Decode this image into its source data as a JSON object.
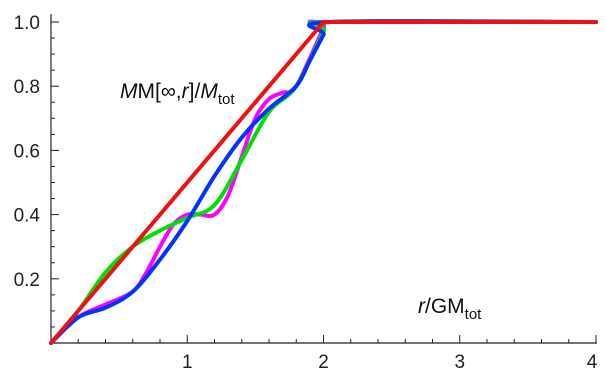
{
  "chart_data": {
    "type": "line",
    "title": "",
    "xlim": [
      0,
      4
    ],
    "ylim": [
      0,
      1
    ],
    "grid": false,
    "x_ticks": [
      1,
      2,
      3,
      4
    ],
    "y_ticks": [
      0.2,
      0.4,
      0.6,
      0.8,
      1.0
    ],
    "x_tick_labels": [
      "1",
      "2",
      "3",
      "4"
    ],
    "y_tick_labels": [
      "0.2",
      "0.4",
      "0.6",
      "0.8",
      "1.0"
    ],
    "annotations": {
      "y_label": {
        "main": "M[∞,",
        "r": "r",
        "close": "]/",
        "m2": "M",
        "sub": "tot"
      },
      "x_label": {
        "r": "r",
        "slash": "/GM",
        "sub": "tot"
      }
    },
    "series": [
      {
        "color": "#ff00ff",
        "x": [
          0,
          0.2,
          0.4,
          0.6,
          0.7,
          0.8,
          0.9,
          1.0,
          1.1,
          1.2,
          1.3,
          1.4,
          1.5,
          1.6,
          1.7,
          1.8,
          2.0,
          2.05,
          4.0
        ],
        "y": [
          0,
          0.08,
          0.12,
          0.16,
          0.22,
          0.3,
          0.37,
          0.4,
          0.4,
          0.4,
          0.46,
          0.58,
          0.7,
          0.76,
          0.78,
          0.8,
          0.98,
          1.0,
          1.0
        ]
      },
      {
        "color": "#00e000",
        "x": [
          0,
          0.2,
          0.4,
          0.6,
          0.8,
          1.0,
          1.2,
          1.4,
          1.6,
          1.8,
          2.0,
          2.05,
          4.0
        ],
        "y": [
          0,
          0.1,
          0.22,
          0.3,
          0.35,
          0.39,
          0.43,
          0.57,
          0.72,
          0.8,
          0.97,
          1.0,
          1.0
        ]
      },
      {
        "color": "#0033ff",
        "x": [
          0,
          0.2,
          0.4,
          0.6,
          0.8,
          1.0,
          1.2,
          1.4,
          1.6,
          1.8,
          1.9,
          2.0,
          2.05,
          4.0
        ],
        "y": [
          0,
          0.08,
          0.11,
          0.16,
          0.26,
          0.38,
          0.52,
          0.64,
          0.73,
          0.8,
          0.88,
          0.96,
          1.0,
          1.0
        ]
      },
      {
        "color": "#ee1111",
        "x": [
          0,
          2.0,
          4.0
        ],
        "y": [
          0,
          1.0,
          1.0
        ]
      }
    ]
  }
}
